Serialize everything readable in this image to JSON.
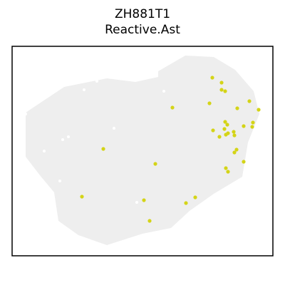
{
  "chart_data": {
    "type": "scatter",
    "title": "ZH881T1",
    "subtitle": "Reactive.Ast",
    "xlabel": "",
    "ylabel": "",
    "axes_ticks": false,
    "grid": false,
    "background_spots_color": "#eeeeee",
    "highlight_color": "#d4d417",
    "xlim": [
      0,
      366
    ],
    "ylim": [
      0,
      294
    ],
    "highlighted_points": [
      {
        "x": 281,
        "y": 250
      },
      {
        "x": 294,
        "y": 243
      },
      {
        "x": 294,
        "y": 233
      },
      {
        "x": 299,
        "y": 231
      },
      {
        "x": 277,
        "y": 214
      },
      {
        "x": 225,
        "y": 208
      },
      {
        "x": 316,
        "y": 207
      },
      {
        "x": 333,
        "y": 217
      },
      {
        "x": 346,
        "y": 205
      },
      {
        "x": 302,
        "y": 184
      },
      {
        "x": 299,
        "y": 188
      },
      {
        "x": 298,
        "y": 178
      },
      {
        "x": 300,
        "y": 170
      },
      {
        "x": 303,
        "y": 172
      },
      {
        "x": 291,
        "y": 167
      },
      {
        "x": 311,
        "y": 174
      },
      {
        "x": 312,
        "y": 169
      },
      {
        "x": 282,
        "y": 176
      },
      {
        "x": 325,
        "y": 182
      },
      {
        "x": 337,
        "y": 181
      },
      {
        "x": 338,
        "y": 187
      },
      {
        "x": 315,
        "y": 149
      },
      {
        "x": 312,
        "y": 145
      },
      {
        "x": 325,
        "y": 132
      },
      {
        "x": 300,
        "y": 123
      },
      {
        "x": 303,
        "y": 118
      },
      {
        "x": 128,
        "y": 150
      },
      {
        "x": 201,
        "y": 129
      },
      {
        "x": 98,
        "y": 83
      },
      {
        "x": 185,
        "y": 78
      },
      {
        "x": 257,
        "y": 82
      },
      {
        "x": 244,
        "y": 74
      },
      {
        "x": 193,
        "y": 49
      }
    ]
  }
}
